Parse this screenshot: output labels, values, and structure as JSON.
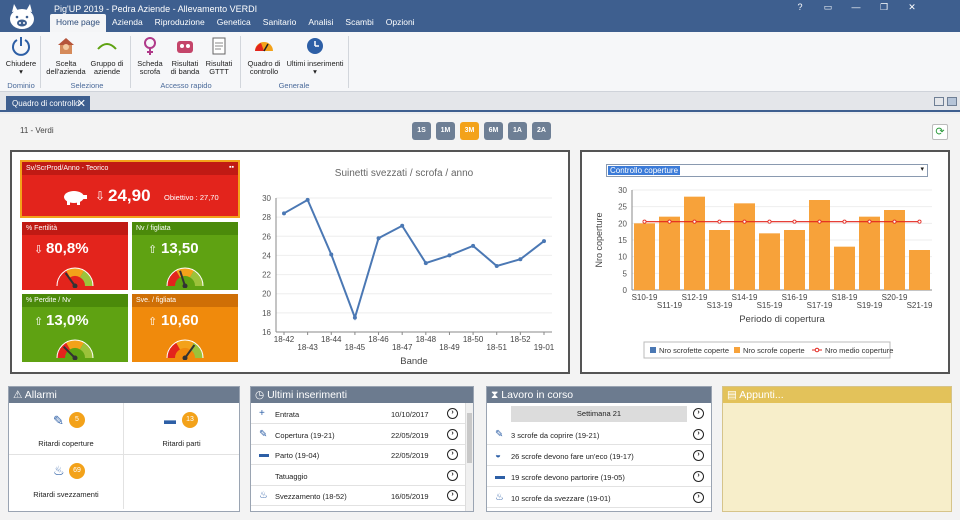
{
  "app": {
    "title": "Pig'UP 2019 - Pedra Aziende - Allevamento VERDI"
  },
  "menu": [
    "Home page",
    "Azienda",
    "Riproduzione",
    "Genetica",
    "Sanitario",
    "Analisi",
    "Scambi",
    "Opzioni"
  ],
  "ribbon": {
    "close": "Chiudere",
    "scelta1": "Scelta",
    "scelta2": "dell'azienda",
    "gruppo1": "Gruppo di",
    "gruppo2": "aziende",
    "scheda1": "Scheda",
    "scheda2": "scrofa",
    "risb1": "Risultati",
    "risb2": "di banda",
    "risg1": "Risultati",
    "risg2": "GTTT",
    "quadro1": "Quadro di",
    "quadro2": "controllo",
    "ultimi": "Ultimi inserimenti",
    "groups": {
      "dominio": "Dominio",
      "selezione": "Selezione",
      "accesso": "Accesso rapido",
      "generale": "Generale"
    }
  },
  "tab": "Quadro di controllo",
  "farm": "11 - Verdi",
  "ranges": [
    "1S",
    "1M",
    "3M",
    "6M",
    "1A",
    "2A"
  ],
  "selected_range": "3M",
  "kpis": {
    "main": {
      "title": "Sv/ScrProd/Anno - Teorico",
      "arrow": "⇩",
      "value": "24,90",
      "target": "Obiettivo : 27,70"
    },
    "fertilita": {
      "title": "% Fertilità",
      "arrow": "⇩",
      "value": "80,8%",
      "gauge": 0.3
    },
    "nv": {
      "title": "Nv / figliata",
      "arrow": "⇧",
      "value": "13,50",
      "gauge": 0.4
    },
    "perdite": {
      "title": "% Perdite / Nv",
      "arrow": "⇧",
      "value": "13,0%",
      "gauge": 0.25
    },
    "sve": {
      "title": "Sve. / figliata",
      "arrow": "⇧",
      "value": "10,60",
      "gauge": 0.7
    }
  },
  "colors": {
    "red": "#e3241c",
    "green": "#5fa212",
    "orange": "#f08a0c",
    "bar": "#f7a23a",
    "line": "#4b78b4",
    "nav": "#3e5f8f"
  },
  "chart_data": [
    {
      "type": "line",
      "title": "Suinetti svezzati / scrofa / anno",
      "xlabel": "Bande",
      "ylim": [
        16,
        30
      ],
      "yticks": [
        16,
        18,
        20,
        22,
        24,
        26,
        28,
        30
      ],
      "x": [
        "18-42",
        "18-43",
        "18-44",
        "18-45",
        "18-46",
        "18-47",
        "18-48",
        "18-49",
        "18-50",
        "18-51",
        "18-52",
        "19-01"
      ],
      "values": [
        28.4,
        29.8,
        24.1,
        17.5,
        25.8,
        27.1,
        23.2,
        24.0,
        25.0,
        22.9,
        23.6,
        25.5
      ]
    },
    {
      "type": "bar",
      "title": "Controllo coperture",
      "xlabel": "Periodo di copertura",
      "ylabel": "Nro coperture",
      "ylim": [
        0,
        30
      ],
      "yticks": [
        0,
        5,
        10,
        15,
        20,
        25,
        30
      ],
      "categories": [
        "S10-19",
        "S11-19",
        "S12-19",
        "S13-19",
        "S14-19",
        "S15-19",
        "S16-19",
        "S17-19",
        "S18-19",
        "S19-19",
        "S20-19",
        "S21-19"
      ],
      "series": [
        {
          "name": "Nro scrofette coperte",
          "values": [
            0,
            0,
            0,
            0,
            0,
            0,
            0,
            0,
            0,
            0,
            0,
            0
          ]
        },
        {
          "name": "Nro scrofe coperte",
          "values": [
            20,
            22,
            28,
            18,
            26,
            17,
            18,
            27,
            13,
            22,
            24,
            12
          ]
        },
        {
          "name": "Nro medio coperture",
          "values": [
            20.5,
            20.5,
            20.5,
            20.5,
            20.5,
            20.5,
            20.5,
            20.5,
            20.5,
            20.5,
            20.5,
            20.5
          ]
        }
      ]
    }
  ],
  "alarms": {
    "title": "Allarmi",
    "items": [
      {
        "label": "Ritardi coperture",
        "count": "5"
      },
      {
        "label": "Ritardi parti",
        "count": "13"
      },
      {
        "label": "Ritardi svezzamenti",
        "count": "69"
      }
    ]
  },
  "recent": {
    "title": "Ultimi inserimenti",
    "rows": [
      {
        "label": "Entrata",
        "date": "10/10/2017"
      },
      {
        "label": "Copertura (19-21)",
        "date": "22/05/2019"
      },
      {
        "label": "Parto (19-04)",
        "date": "22/05/2019"
      },
      {
        "label": "Tatuaggio",
        "date": ""
      },
      {
        "label": "Svezzamento (18-52)",
        "date": "16/05/2019"
      }
    ]
  },
  "work": {
    "title": "Lavoro in corso",
    "week": "Settimana  21",
    "rows": [
      {
        "label": "3 scrofe da coprire (19-21)"
      },
      {
        "label": "26 scrofe devono fare un'eco (19-17)"
      },
      {
        "label": "19 scrofe devono partorire (19-05)"
      },
      {
        "label": "10 scrofe da svezzare (19-01)"
      }
    ]
  },
  "notes": {
    "title": "Appunti..."
  }
}
